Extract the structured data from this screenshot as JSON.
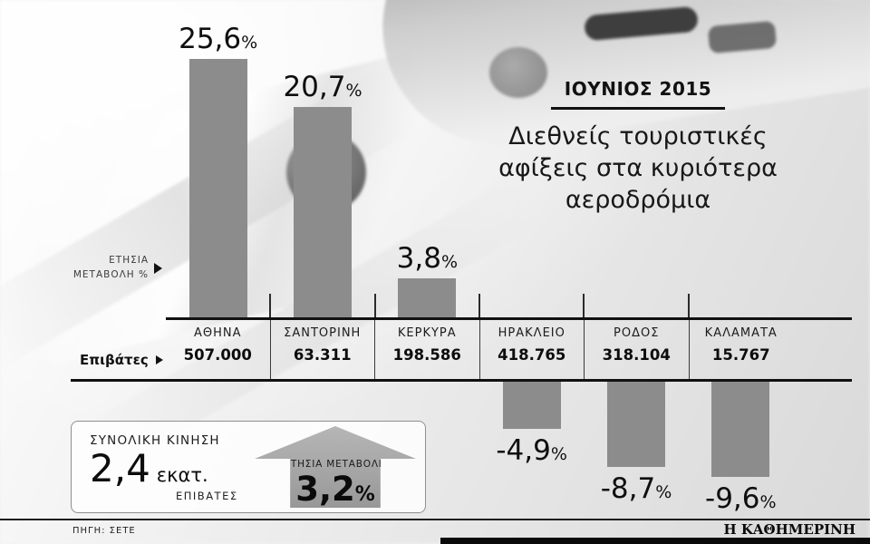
{
  "header": {
    "kicker": "ΙΟΥΝΙΟΣ 2015",
    "title_lines": [
      "Διεθνείς τουριστικές",
      "αφίξεις στα κυριότερα",
      "αεροδρόμια"
    ]
  },
  "axis_note_lines": [
    "ΕΤΗΣΙΑ",
    "ΜΕΤΑΒΟΛΗ %"
  ],
  "passengers_label": "Επιβάτες",
  "chart_data": {
    "type": "bar",
    "title": "Διεθνείς τουριστικές αφίξεις στα κυριότερα αεροδρόμια",
    "subtitle": "ΙΟΥΝΙΟΣ 2015",
    "categories": [
      "ΑΘΗΝΑ",
      "ΣΑΝΤΟΡΙΝΗ",
      "ΚΕΡΚΥΡΑ",
      "ΗΡΑΚΛΕΙΟ",
      "ΡΟΔΟΣ",
      "ΚΑΛΑΜΑΤΑ"
    ],
    "values": [
      25.6,
      20.7,
      3.8,
      -4.9,
      -8.7,
      -9.6
    ],
    "value_labels": [
      "25,6",
      "20,7",
      "3,8",
      "-4,9",
      "-8,7",
      "-9,6"
    ],
    "unit": "%",
    "passengers": [
      "507.000",
      "63.311",
      "198.586",
      "418.765",
      "318.104",
      "15.767"
    ],
    "ylabel": "ΕΤΗΣΙΑ ΜΕΤΑΒΟΛΗ %",
    "ylim": [
      -10,
      26
    ],
    "grid": false,
    "legend": false,
    "bar_color": "#8c8c8c"
  },
  "summary": {
    "total_label": "ΣΥΝΟΛΙΚΗ ΚΙΝΗΣΗ",
    "total_value": "2,4",
    "total_unit": "εκατ.",
    "total_sub": "ΕΠΙΒΑΤΕΣ",
    "change_label": "ΕΤΗΣΙΑ ΜΕΤΑΒΟΛΗ",
    "change_value": "3,2",
    "change_unit": "%"
  },
  "footer": {
    "source": "ΠΗΓΗ: ΣΕΤΕ",
    "brand": "Η ΚΑΘΗΜΕΡΙΝΗ"
  }
}
